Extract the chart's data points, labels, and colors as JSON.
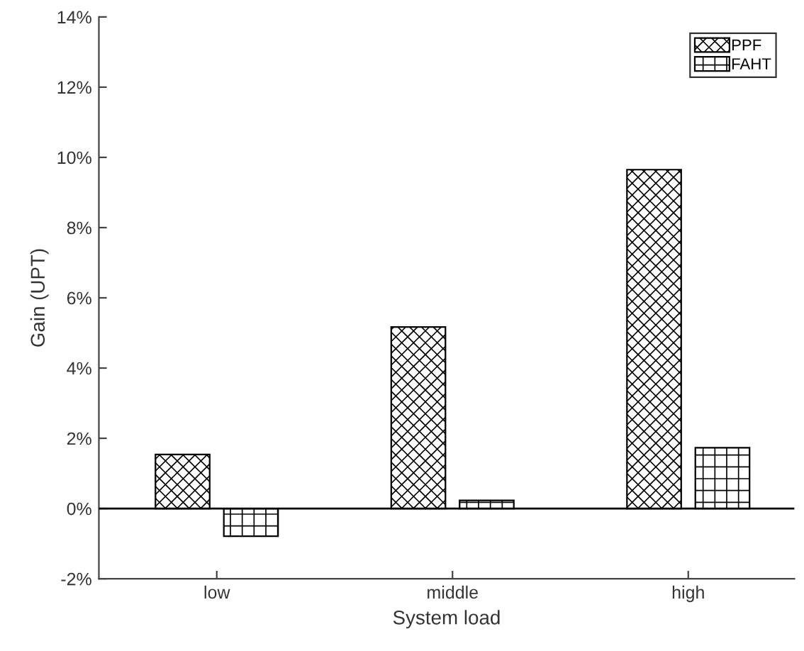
{
  "chart_data": {
    "type": "bar",
    "xlabel": "System load",
    "ylabel": "Gain (UPT)",
    "categories": [
      "low",
      "middle",
      "high"
    ],
    "series": [
      {
        "name": "PPF",
        "color": "#000000",
        "values": [
          1.54,
          5.17,
          9.65
        ]
      },
      {
        "name": "FAHT",
        "color": "#000000",
        "values": [
          -0.79,
          0.23,
          1.73
        ]
      }
    ],
    "ylim": [
      -2,
      14
    ],
    "yticks": [
      {
        "value": -2,
        "label": "-2%"
      },
      {
        "value": 0,
        "label": "0%"
      },
      {
        "value": 2,
        "label": "2%"
      },
      {
        "value": 4,
        "label": "4%"
      },
      {
        "value": 6,
        "label": "6%"
      },
      {
        "value": 8,
        "label": "8%"
      },
      {
        "value": 10,
        "label": "10%"
      },
      {
        "value": 12,
        "label": "12%"
      },
      {
        "value": 14,
        "label": "14%"
      }
    ],
    "ref_lines": [
      {
        "axis": "y",
        "value": 0,
        "color": "#000000"
      }
    ],
    "grid": false,
    "legend": "top right"
  }
}
